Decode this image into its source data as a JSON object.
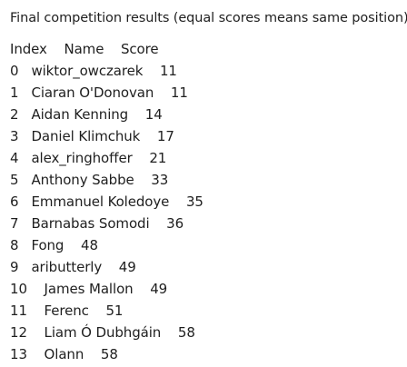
{
  "title": "Final competition results (equal scores means same position):",
  "header": "Index    Name    Score",
  "rows": [
    "0   wiktor_owczarek    11",
    "1   Ciaran O'Donovan    11",
    "2   Aidan Kenning    14",
    "3   Daniel Klimchuk    17",
    "4   alex_ringhoffer    21",
    "5   Anthony Sabbe    33",
    "6   Emmanuel Koledoye    35",
    "7   Barnabas Somodi    36",
    "8   Fong    48",
    "9   aributterly    49",
    "10    James Mallon    49",
    "11    Ferenc    51",
    "12    Liam Ó Dubhgáin    58",
    "13    Olann    58"
  ]
}
